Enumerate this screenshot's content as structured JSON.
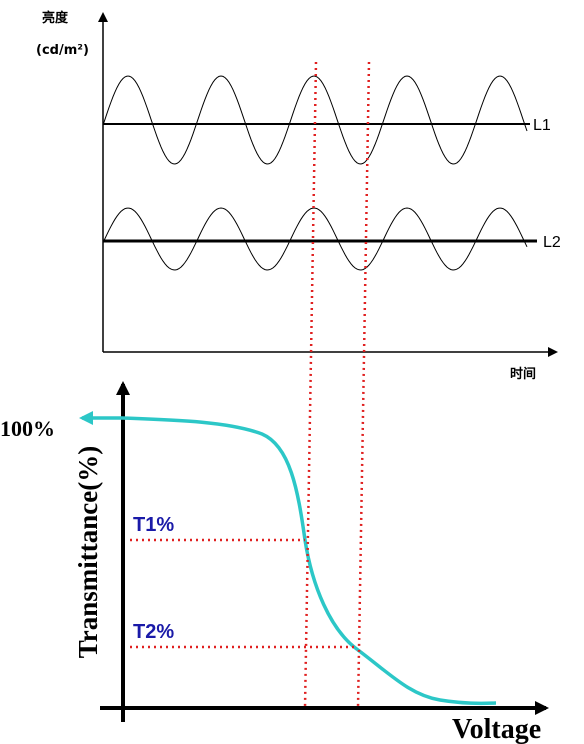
{
  "top_chart": {
    "y_label": "亮度",
    "y_unit": "(cd/m²)",
    "x_label": "时间",
    "lines": [
      "L1",
      "L2"
    ]
  },
  "bottom_chart": {
    "y_label": "Transmittance(%)",
    "top_label": "100%",
    "levels": [
      "T1%",
      "T2%"
    ],
    "x_label": "Voltage"
  }
}
